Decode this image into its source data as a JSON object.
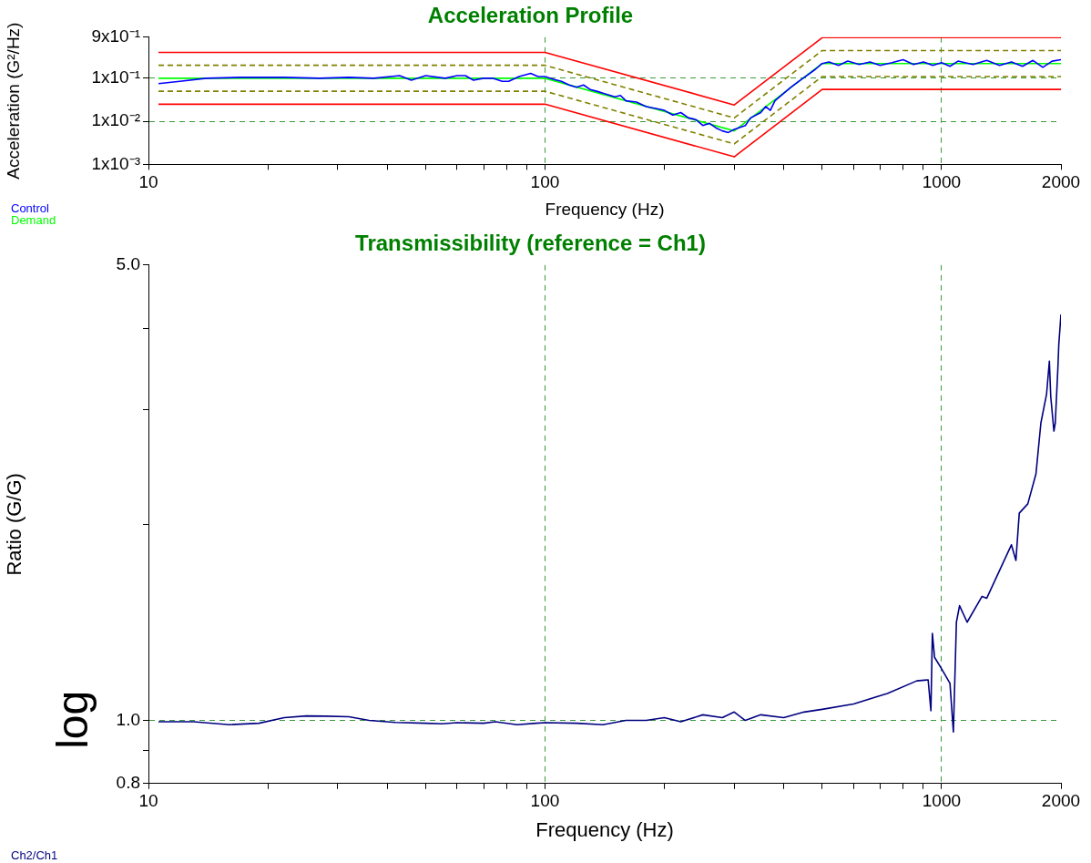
{
  "chart_data": [
    {
      "type": "line",
      "title": "Acceleration Profile",
      "xlabel": "Frequency (Hz)",
      "ylabel": "Acceleration (G²/Hz)",
      "log": "xy",
      "grid": true,
      "legend": "bottom left",
      "marker": "none",
      "line_style": "solid",
      "xlim": [
        10,
        2000
      ],
      "xticks": [
        10,
        {
          "value": 20,
          "label": null
        },
        {
          "value": 30,
          "label": null
        },
        {
          "value": 40,
          "label": null
        },
        {
          "value": 50,
          "label": null
        },
        {
          "value": 60,
          "label": null
        },
        {
          "value": 70,
          "label": null
        },
        {
          "value": 80,
          "label": null
        },
        {
          "value": 90,
          "label": null
        },
        100,
        {
          "value": 200,
          "label": null
        },
        {
          "value": 300,
          "label": null
        },
        {
          "value": 400,
          "label": null
        },
        {
          "value": 500,
          "label": null
        },
        {
          "value": 600,
          "label": null
        },
        {
          "value": 700,
          "label": null
        },
        {
          "value": 800,
          "label": null
        },
        {
          "value": 900,
          "label": null
        },
        1000,
        2000
      ],
      "ylim": [
        0.001,
        0.9
      ],
      "yticks": [
        {
          "value": 0.001,
          "label": "1x10⁻³"
        },
        {
          "value": 0.01,
          "label": "1x10⁻²"
        },
        {
          "value": 0.1,
          "label": "1x10⁻¹"
        },
        {
          "value": 0.9,
          "label": "9x10⁻¹"
        }
      ],
      "series": [
        {
          "name": "Control",
          "color": "#0000ff",
          "x": [
            10.6,
            12,
            14,
            17,
            22,
            27,
            32,
            37,
            43,
            46,
            50,
            56,
            60,
            63,
            66,
            70,
            74,
            78,
            81,
            86,
            92,
            96,
            100,
            105,
            110,
            115,
            120,
            125,
            130,
            135,
            140,
            150,
            155,
            160,
            170,
            180,
            190,
            200,
            210,
            220,
            230,
            240,
            250,
            260,
            270,
            280,
            290,
            300,
            320,
            330,
            350,
            360,
            370,
            380,
            400,
            420,
            440,
            460,
            480,
            500,
            520,
            550,
            580,
            620,
            660,
            700,
            750,
            800,
            850,
            900,
            950,
            1000,
            1050,
            1100,
            1200,
            1300,
            1400,
            1500,
            1600,
            1700,
            1800,
            1900,
            2000
          ],
          "values": [
            0.075,
            0.085,
            0.1,
            0.105,
            0.105,
            0.1,
            0.105,
            0.1,
            0.115,
            0.09,
            0.115,
            0.1,
            0.115,
            0.115,
            0.09,
            0.1,
            0.1,
            0.085,
            0.085,
            0.11,
            0.13,
            0.11,
            0.11,
            0.095,
            0.085,
            0.07,
            0.062,
            0.07,
            0.055,
            0.05,
            0.045,
            0.037,
            0.04,
            0.03,
            0.028,
            0.022,
            0.02,
            0.018,
            0.014,
            0.016,
            0.012,
            0.011,
            0.008,
            0.009,
            0.007,
            0.006,
            0.0055,
            0.0065,
            0.008,
            0.012,
            0.016,
            0.022,
            0.018,
            0.03,
            0.045,
            0.065,
            0.09,
            0.12,
            0.16,
            0.22,
            0.24,
            0.2,
            0.25,
            0.21,
            0.24,
            0.2,
            0.23,
            0.27,
            0.21,
            0.24,
            0.2,
            0.23,
            0.19,
            0.25,
            0.21,
            0.26,
            0.2,
            0.24,
            0.19,
            0.26,
            0.18,
            0.25,
            0.27
          ]
        },
        {
          "name": "Demand",
          "color": "#00ff00",
          "x": [
            10.6,
            100,
            300,
            500,
            2000
          ],
          "values": [
            0.1,
            0.1,
            0.006,
            0.22,
            0.22
          ]
        },
        {
          "color": "#ff0000",
          "x": [
            10.6,
            100,
            300,
            500,
            2000
          ],
          "values": [
            0.4,
            0.4,
            0.024,
            0.88,
            0.88
          ]
        },
        {
          "color": "#ff0000",
          "x": [
            10.6,
            100,
            300,
            500,
            2000
          ],
          "values": [
            0.025,
            0.025,
            0.0015,
            0.055,
            0.055
          ]
        },
        {
          "color": "#808000",
          "line_style": "dashed",
          "x": [
            10.6,
            100,
            300,
            500,
            2000
          ],
          "values": [
            0.2,
            0.2,
            0.012,
            0.44,
            0.44
          ]
        },
        {
          "color": "#808000",
          "line_style": "dashed",
          "x": [
            10.6,
            100,
            300,
            500,
            2000
          ],
          "values": [
            0.05,
            0.05,
            0.003,
            0.11,
            0.11
          ]
        }
      ]
    },
    {
      "type": "line",
      "title": "Transmissibility (reference = Ch1)",
      "xlabel": "Frequency (Hz)",
      "ylabel": "Ratio (G/G)",
      "annotations": [
        "log"
      ],
      "log": "xy",
      "grid": true,
      "legend": "bottom left",
      "marker": "none",
      "line_style": "solid",
      "xlim": [
        10,
        2000
      ],
      "xticks": [
        10,
        {
          "value": 20,
          "label": null
        },
        {
          "value": 30,
          "label": null
        },
        {
          "value": 40,
          "label": null
        },
        {
          "value": 50,
          "label": null
        },
        {
          "value": 60,
          "label": null
        },
        {
          "value": 70,
          "label": null
        },
        {
          "value": 80,
          "label": null
        },
        {
          "value": 90,
          "label": null
        },
        100,
        {
          "value": 200,
          "label": null
        },
        {
          "value": 300,
          "label": null
        },
        {
          "value": 400,
          "label": null
        },
        {
          "value": 500,
          "label": null
        },
        {
          "value": 600,
          "label": null
        },
        {
          "value": 700,
          "label": null
        },
        {
          "value": 800,
          "label": null
        },
        {
          "value": 900,
          "label": null
        },
        1000,
        2000
      ],
      "ylim": [
        0.8,
        5
      ],
      "yticks": [
        {
          "value": 0.8,
          "label": "0.8"
        },
        {
          "value": 0.9,
          "label": null
        },
        {
          "value": 1,
          "label": "1.0"
        },
        {
          "value": 2,
          "label": null
        },
        {
          "value": 3,
          "label": null
        },
        {
          "value": 4,
          "label": null
        },
        {
          "value": 5,
          "label": "5.0"
        }
      ],
      "series": [
        {
          "name": "Ch2/Ch1",
          "color": "#000080",
          "x": [
            10.6,
            13,
            16,
            19,
            22,
            25,
            28,
            32,
            36,
            42,
            50,
            55,
            60,
            70,
            75,
            85,
            95,
            100,
            120,
            140,
            160,
            180,
            200,
            220,
            250,
            280,
            300,
            320,
            350,
            400,
            450,
            500,
            600,
            730,
            866,
            925,
            940,
            948,
            960,
            1000,
            1050,
            1071,
            1090,
            1110,
            1160,
            1265,
            1300,
            1500,
            1540,
            1570,
            1650,
            1730,
            1780,
            1840,
            1870,
            1885,
            1920,
            1935,
            1965,
            1975,
            2000
          ],
          "values": [
            0.995,
            0.995,
            0.985,
            0.99,
            1.01,
            1.016,
            1.015,
            1.013,
            1.0,
            0.993,
            0.99,
            0.988,
            0.992,
            0.99,
            0.995,
            0.985,
            0.99,
            0.992,
            0.99,
            0.985,
            1.0,
            1.0,
            1.01,
            0.995,
            1.02,
            1.01,
            1.03,
            1.0,
            1.02,
            1.01,
            1.03,
            1.04,
            1.06,
            1.1,
            1.15,
            1.154,
            1.035,
            1.36,
            1.25,
            1.2,
            1.14,
            0.96,
            1.415,
            1.5,
            1.415,
            1.55,
            1.54,
            1.86,
            1.76,
            2.08,
            2.15,
            2.39,
            2.86,
            3.17,
            3.56,
            3.14,
            2.78,
            2.86,
            3.48,
            3.77,
            4.2
          ]
        }
      ]
    }
  ]
}
